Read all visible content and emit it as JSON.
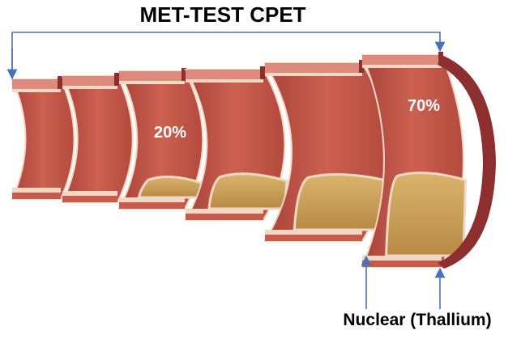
{
  "title": "MET-TEST CPET",
  "labels": {
    "stenosis_low": "20%",
    "stenosis_high": "70%",
    "bottom_label": "Nuclear (Thallium)"
  },
  "colors": {
    "arrow": "#4a72b8",
    "artery_wall": "#c4574a",
    "artery_rim": "#dd8a7c",
    "artery_dark": "#8e2f2f",
    "intima": "#f1d8c4",
    "plaque": "#c9a15c",
    "text_dark": "#000000",
    "text_light": "#ffffff"
  }
}
